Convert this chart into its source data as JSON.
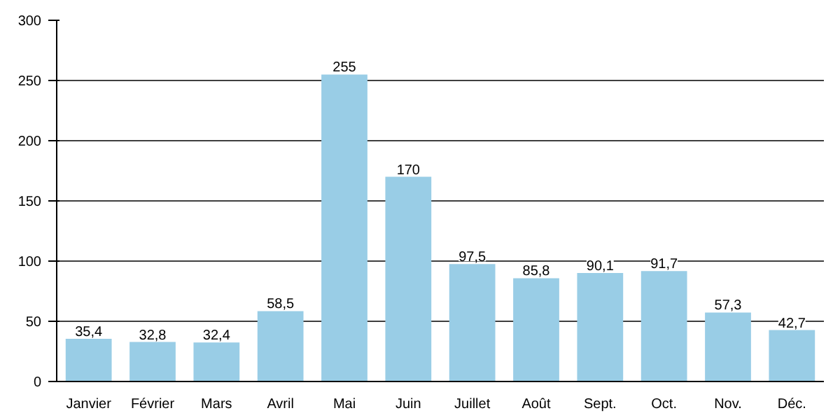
{
  "chart_data": {
    "type": "bar",
    "categories": [
      "Janvier",
      "Février",
      "Mars",
      "Avril",
      "Mai",
      "Juin",
      "Juillet",
      "Août",
      "Sept.",
      "Oct.",
      "Nov.",
      "Déc."
    ],
    "values": [
      35.4,
      32.8,
      32.4,
      58.5,
      255,
      170,
      97.5,
      85.8,
      90.1,
      91.7,
      57.3,
      42.7
    ],
    "value_labels": [
      "35,4",
      "32,8",
      "32,4",
      "58,5",
      "255",
      "170",
      "97,5",
      "85,8",
      "90,1",
      "91,7",
      "57,3",
      "42,7"
    ],
    "color": "#99cde6",
    "ylim": [
      0,
      300
    ],
    "yticks": [
      0,
      50,
      100,
      150,
      200,
      250,
      300
    ],
    "grid": "y"
  }
}
